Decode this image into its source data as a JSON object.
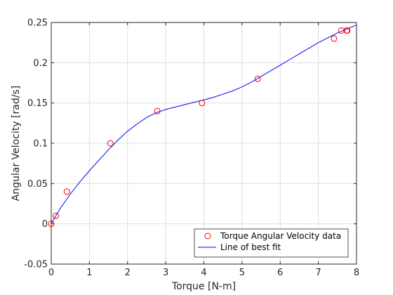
{
  "chart_data": {
    "type": "scatter",
    "title": "",
    "xlabel": "Torque [N-m]",
    "ylabel": "Angular Velocity [rad/s]",
    "xlim": [
      0,
      8
    ],
    "ylim": [
      -0.05,
      0.25
    ],
    "x_ticks": [
      0,
      1,
      2,
      3,
      4,
      5,
      6,
      7,
      8
    ],
    "x_tick_labels": [
      "0",
      "1",
      "2",
      "3",
      "4",
      "5",
      "6",
      "7",
      "8"
    ],
    "y_ticks": [
      -0.05,
      0,
      0.05,
      0.1,
      0.15,
      0.2,
      0.25
    ],
    "y_tick_labels": [
      "-0.05",
      "0",
      "0.05",
      "0.1",
      "0.15",
      "0.2",
      "0.25"
    ],
    "grid": true,
    "legend_position": "bottom-right",
    "series": [
      {
        "name": "Torque Angular Velocity data",
        "kind": "markers",
        "marker": "circle",
        "color": "#ff0000",
        "x": [
          0.0,
          0.12,
          0.41,
          1.55,
          2.78,
          3.95,
          5.41,
          7.41,
          7.6,
          7.74,
          7.76
        ],
        "y": [
          0.0,
          0.01,
          0.04,
          0.1,
          0.14,
          0.15,
          0.18,
          0.23,
          0.24,
          0.24,
          0.24
        ]
      },
      {
        "name": "Line of best fit",
        "kind": "line",
        "color": "#0000ff",
        "x": [
          0,
          0.1,
          0.25,
          0.5,
          0.75,
          1.0,
          1.25,
          1.5,
          1.75,
          2.0,
          2.25,
          2.5,
          2.75,
          3.0,
          3.25,
          3.5,
          3.75,
          4.0,
          4.25,
          4.5,
          4.75,
          5.0,
          5.25,
          5.5,
          5.75,
          6.0,
          6.25,
          6.5,
          6.75,
          7.0,
          7.25,
          7.5,
          7.75,
          8.0
        ],
        "y": [
          0.0,
          0.0085,
          0.02,
          0.037,
          0.052,
          0.066,
          0.079,
          0.092,
          0.104,
          0.115,
          0.124,
          0.132,
          0.138,
          0.142,
          0.145,
          0.148,
          0.151,
          0.154,
          0.157,
          0.161,
          0.165,
          0.17,
          0.176,
          0.183,
          0.19,
          0.197,
          0.204,
          0.211,
          0.218,
          0.225,
          0.231,
          0.237,
          0.242,
          0.247
        ]
      }
    ]
  }
}
